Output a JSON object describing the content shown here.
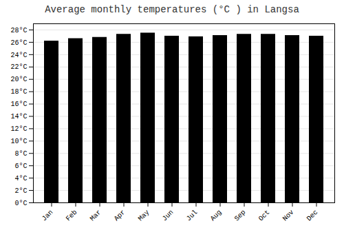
{
  "chart_data": {
    "type": "bar",
    "title": "Average monthly temperatures (°C ) in Langsa",
    "categories": [
      "Jan",
      "Feb",
      "Mar",
      "Apr",
      "May",
      "Jun",
      "Jul",
      "Aug",
      "Sep",
      "Oct",
      "Nov",
      "Dec"
    ],
    "values": [
      26.2,
      26.6,
      26.8,
      27.3,
      27.5,
      27.0,
      26.9,
      27.1,
      27.3,
      27.3,
      27.1,
      27.0
    ],
    "ylim": [
      0,
      29
    ],
    "yticks": [
      {
        "value": 0,
        "label": "0°C"
      },
      {
        "value": 2,
        "label": "2°C"
      },
      {
        "value": 4,
        "label": "4°C"
      },
      {
        "value": 6,
        "label": "6°C"
      },
      {
        "value": 8,
        "label": "8°C"
      },
      {
        "value": 10,
        "label": "10°C"
      },
      {
        "value": 12,
        "label": "12°C"
      },
      {
        "value": 14,
        "label": "14°C"
      },
      {
        "value": 16,
        "label": "16°C"
      },
      {
        "value": 18,
        "label": "18°C"
      },
      {
        "value": 20,
        "label": "20°C"
      },
      {
        "value": 22,
        "label": "22°C"
      },
      {
        "value": 24,
        "label": "24°C"
      },
      {
        "value": 26,
        "label": "26°C"
      },
      {
        "value": 28,
        "label": "28°C"
      }
    ],
    "grid": true
  }
}
